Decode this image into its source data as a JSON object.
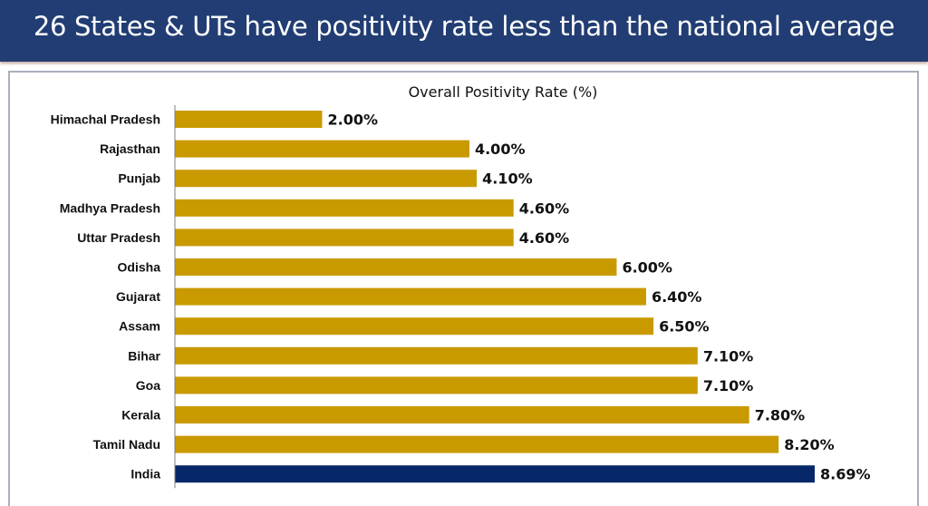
{
  "header": {
    "title": "26 States & UTs have positivity rate less than the national average"
  },
  "colors": {
    "banner": "#213d73",
    "state_bar": "#c99a00",
    "national_bar": "#062869"
  },
  "chart_data": {
    "type": "bar",
    "orientation": "horizontal",
    "title": "Overall Positivity Rate (%)",
    "xlabel": "",
    "ylabel": "",
    "xlim": [
      0,
      8.69
    ],
    "grid": false,
    "legend": "none",
    "categories": [
      "Himachal Pradesh",
      "Rajasthan",
      "Punjab",
      "Madhya Pradesh",
      "Uttar Pradesh",
      "Odisha",
      "Gujarat",
      "Assam",
      "Bihar",
      "Goa",
      "Kerala",
      "Tamil Nadu",
      "India"
    ],
    "values": [
      2.0,
      4.0,
      4.1,
      4.6,
      4.6,
      6.0,
      6.4,
      6.5,
      7.1,
      7.1,
      7.8,
      8.2,
      8.69
    ],
    "data_labels": [
      "2.00%",
      "4.00%",
      "4.10%",
      "4.60%",
      "4.60%",
      "6.00%",
      "6.40%",
      "6.50%",
      "7.10%",
      "7.10%",
      "7.80%",
      "8.20%",
      "8.69%"
    ],
    "highlight": "India"
  }
}
